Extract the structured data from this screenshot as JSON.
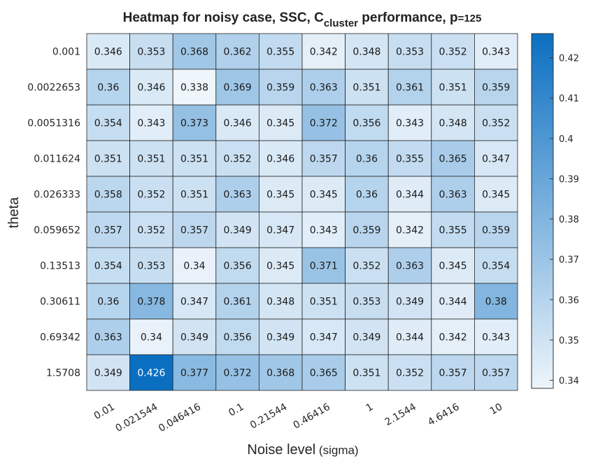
{
  "chart_data": {
    "type": "heatmap",
    "title": {
      "part1": "Heatmap for noisy case, SSC, C",
      "subscript": "cluster",
      "part2": " performance, p",
      "part3": "=125"
    },
    "xlabel": {
      "main": "Noise level",
      "suffix": " (sigma)"
    },
    "ylabel": "theta",
    "x_categories": [
      "0.01",
      "0.021544",
      "0.046416",
      "0.1",
      "0.21544",
      "0.46416",
      "1",
      "2.1544",
      "4.6416",
      "10"
    ],
    "y_categories": [
      "0.001",
      "0.0022653",
      "0.0051316",
      "0.011624",
      "0.026333",
      "0.059652",
      "0.13513",
      "0.30611",
      "0.69342",
      "1.5708"
    ],
    "values": [
      [
        0.346,
        0.353,
        0.368,
        0.362,
        0.355,
        0.342,
        0.348,
        0.353,
        0.352,
        0.343
      ],
      [
        0.36,
        0.346,
        0.338,
        0.369,
        0.359,
        0.363,
        0.351,
        0.361,
        0.351,
        0.359
      ],
      [
        0.354,
        0.343,
        0.373,
        0.346,
        0.345,
        0.372,
        0.356,
        0.343,
        0.348,
        0.352
      ],
      [
        0.351,
        0.351,
        0.351,
        0.352,
        0.346,
        0.357,
        0.36,
        0.355,
        0.365,
        0.347
      ],
      [
        0.358,
        0.352,
        0.351,
        0.363,
        0.345,
        0.345,
        0.36,
        0.344,
        0.363,
        0.345
      ],
      [
        0.357,
        0.352,
        0.357,
        0.349,
        0.347,
        0.343,
        0.359,
        0.342,
        0.355,
        0.359
      ],
      [
        0.354,
        0.353,
        0.34,
        0.356,
        0.345,
        0.371,
        0.352,
        0.363,
        0.345,
        0.354
      ],
      [
        0.36,
        0.378,
        0.347,
        0.361,
        0.348,
        0.351,
        0.353,
        0.349,
        0.344,
        0.38
      ],
      [
        0.363,
        0.34,
        0.349,
        0.356,
        0.349,
        0.347,
        0.349,
        0.344,
        0.342,
        0.343
      ],
      [
        0.349,
        0.426,
        0.377,
        0.372,
        0.368,
        0.365,
        0.351,
        0.352,
        0.357,
        0.357
      ]
    ],
    "colorbar": {
      "min": 0.338,
      "max": 0.426,
      "ticks": [
        0.34,
        0.35,
        0.36,
        0.37,
        0.38,
        0.39,
        0.4,
        0.41,
        0.42
      ],
      "tick_labels": [
        "0.34",
        "0.35",
        "0.36",
        "0.37",
        "0.38",
        "0.39",
        "0.4",
        "0.41",
        "0.42"
      ]
    },
    "colormap": {
      "low": "#eef5fb",
      "high": "#0b6fc1"
    },
    "grid": true,
    "legend": "colorbar right"
  }
}
